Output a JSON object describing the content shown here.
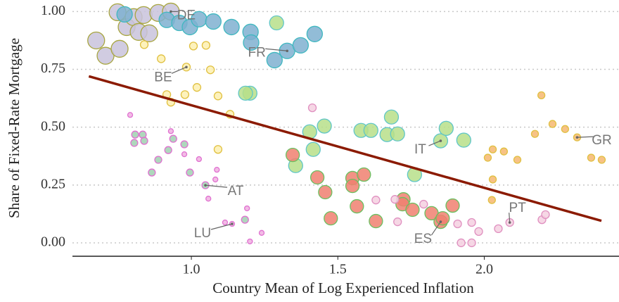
{
  "chart_data": {
    "type": "scatter",
    "x_label": "Country Mean of Log Experienced Inflation",
    "y_label": "Share of Fixed-Rate Mortgage",
    "xlim": [
      0.594,
      2.46
    ],
    "ylim": [
      -0.058,
      1.05
    ],
    "xticks": [
      {
        "value": 1.0,
        "label": "1.0"
      },
      {
        "value": 1.5,
        "label": "1.5"
      },
      {
        "value": 2.0,
        "label": "2.0"
      }
    ],
    "yticks": [
      {
        "value": 0,
        "label": "0.00"
      },
      0.25,
      {
        "value": 0.5,
        "label": "0.50"
      },
      0.75,
      {
        "value": 1,
        "label": "1.00"
      }
    ],
    "grid": true,
    "series": [
      {
        "name": "DE",
        "color": "#c9c3dc",
        "edgecolor": "#a8a640",
        "x": [
          0.675,
          0.707,
          0.755,
          0.748,
          0.779,
          0.803,
          0.82,
          0.837,
          0.856,
          0.887,
          0.93
        ],
        "y": [
          0.875,
          0.809,
          0.839,
          0.997,
          0.933,
          0.976,
          0.912,
          0.985,
          0.906,
          0.994,
          1.0
        ]
      },
      {
        "name": "FR",
        "color": "#7fb0d0",
        "edgecolor": "#3fb8c0",
        "x": [
          0.772,
          0.916,
          0.959,
          0.995,
          1.026,
          1.075,
          1.137,
          1.202,
          1.204,
          1.284,
          1.327,
          1.373,
          1.421
        ],
        "y": [
          0.988,
          0.964,
          0.951,
          0.933,
          0.967,
          0.957,
          0.933,
          0.912,
          0.866,
          0.79,
          0.83,
          0.854,
          0.903
        ]
      },
      {
        "name": "BE",
        "color": "#fdf0b0",
        "edgecolor": "#e0c040",
        "x": [
          0.897,
          0.839,
          1.007,
          1.05,
          0.983,
          1.065,
          0.916,
          0.978,
          0.93,
          1.019,
          1.091,
          1.132,
          1.091
        ],
        "y": [
          0.796,
          0.857,
          0.851,
          0.854,
          0.76,
          0.748,
          0.641,
          0.641,
          0.608,
          0.672,
          0.635,
          0.556,
          0.404
        ]
      },
      {
        "name": "IT",
        "color": "#b7df8a",
        "edgecolor": "#5fc6c8",
        "x": [
          1.404,
          1.416,
          1.454,
          1.356,
          1.579,
          1.613,
          1.668,
          1.683,
          1.704,
          1.762,
          1.851,
          1.87,
          1.93,
          1.291,
          1.2,
          1.185
        ],
        "y": [
          0.48,
          0.404,
          0.505,
          0.334,
          0.486,
          0.486,
          0.468,
          0.544,
          0.471,
          0.295,
          0.441,
          0.495,
          0.444,
          0.951,
          0.647,
          0.647
        ]
      },
      {
        "name": "GR",
        "color": "#f6b770",
        "edgecolor": "#e0c040",
        "x": [
          2.195,
          2.173,
          2.233,
          2.276,
          2.317,
          2.029,
          2.067,
          2.113,
          2.012,
          2.029,
          2.026,
          2.365,
          2.401
        ],
        "y": [
          0.638,
          0.471,
          0.514,
          0.492,
          0.456,
          0.404,
          0.395,
          0.359,
          0.368,
          0.274,
          0.185,
          0.368,
          0.359
        ]
      },
      {
        "name": "ES",
        "color": "#f08070",
        "edgecolor": "#6ac060",
        "x": [
          1.346,
          1.43,
          1.457,
          1.55,
          1.55,
          1.589,
          1.565,
          1.476,
          1.63,
          1.724,
          1.721,
          1.755,
          1.82,
          1.851,
          1.892,
          1.858
        ],
        "y": [
          0.38,
          0.283,
          0.219,
          0.28,
          0.246,
          0.295,
          0.158,
          0.106,
          0.094,
          0.188,
          0.167,
          0.143,
          0.128,
          0.091,
          0.161,
          0.106
        ]
      },
      {
        "name": "PT",
        "color": "#f5d0e0",
        "edgecolor": "#e090c0",
        "x": [
          1.413,
          1.63,
          1.695,
          1.793,
          1.704,
          1.909,
          1.957,
          1.981,
          2.048,
          2.087,
          2.197,
          2.209,
          1.921,
          1.957
        ],
        "y": [
          0.584,
          0.185,
          0.188,
          0.167,
          0.091,
          0.082,
          0.088,
          0.049,
          0.061,
          0.088,
          0.1,
          0.122,
          0.0,
          0.0
        ]
      },
      {
        "name": "AT",
        "color": "#a0d0b0",
        "edgecolor": "#e070d0",
        "x": [
          0.808,
          0.834,
          0.805,
          0.839,
          0.938,
          0.976,
          0.921,
          0.887,
          0.865,
          0.995,
          1.048,
          1.183
        ],
        "y": [
          0.468,
          0.468,
          0.432,
          0.441,
          0.45,
          0.426,
          0.401,
          0.359,
          0.304,
          0.304,
          0.249,
          0.1
        ]
      },
      {
        "name": "LU",
        "color": "#f0b0e0",
        "edgecolor": "#e070d0",
        "x": [
          0.791,
          0.93,
          0.976,
          1.026,
          1.082,
          1.058,
          1.19,
          1.115,
          1.087,
          1.139,
          1.2,
          1.24
        ],
        "y": [
          0.553,
          0.483,
          0.383,
          0.362,
          0.274,
          0.191,
          0.149,
          0.088,
          0.316,
          0.082,
          0.006,
          0.043
        ]
      }
    ],
    "annotations": [
      {
        "series": 0,
        "point": 10
      },
      {
        "series": 1,
        "point": 10
      },
      {
        "series": 2,
        "point": 4
      },
      {
        "series": 3,
        "point": 10
      },
      {
        "series": 4,
        "point": 4
      },
      {
        "series": 5,
        "point": 13
      },
      {
        "series": 6,
        "point": 9
      },
      {
        "series": 7,
        "point": 10
      },
      {
        "series": 8,
        "point": 9
      }
    ],
    "trend": {
      "color": "#8b1a00",
      "x": [
        0.65,
        2.4
      ],
      "y": [
        0.72,
        0.095
      ]
    }
  }
}
